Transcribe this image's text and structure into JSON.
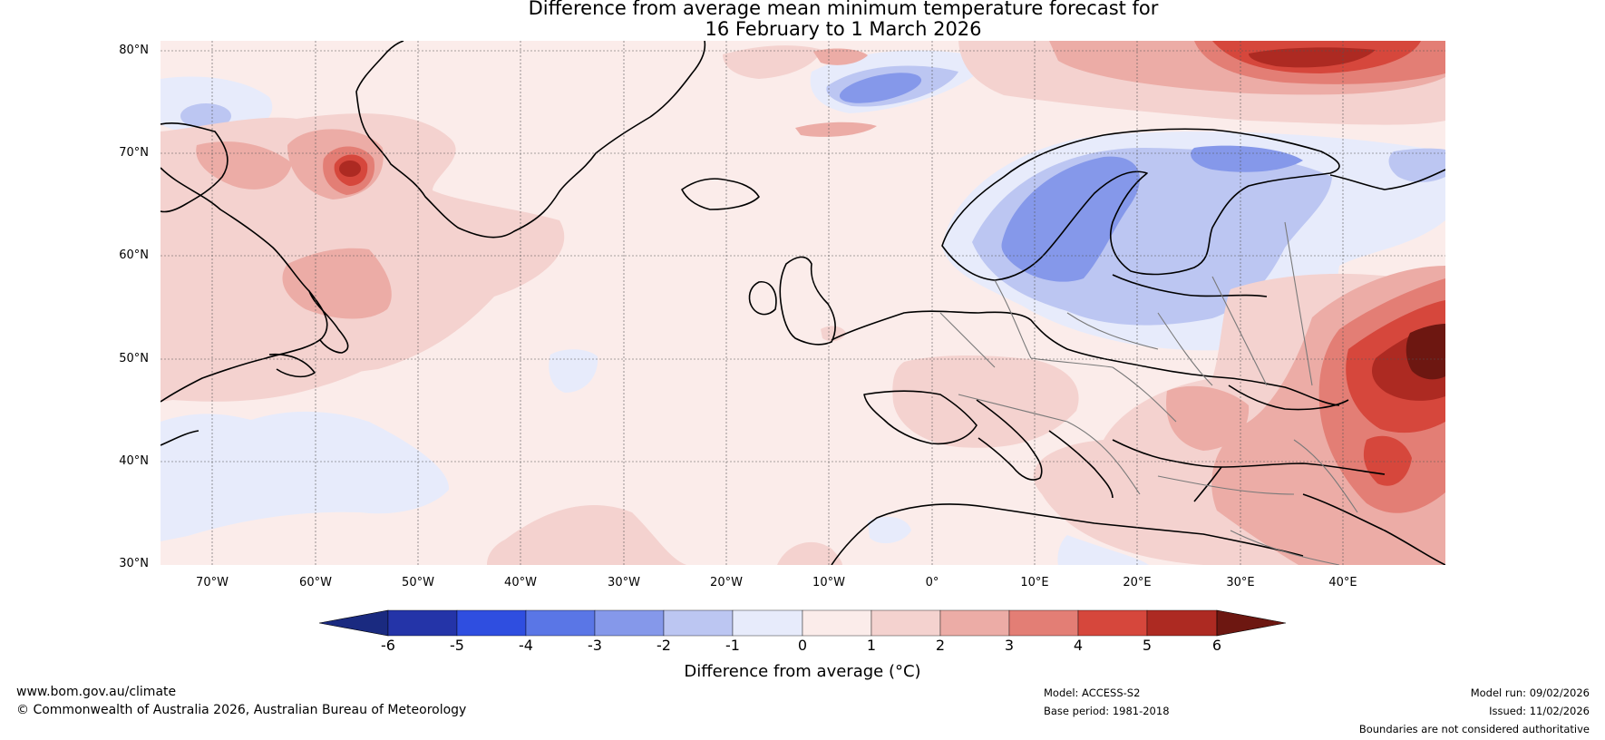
{
  "title": {
    "line1": "Difference from average mean minimum temperature forecast for",
    "line2": "16 February to 1 March 2026"
  },
  "map": {
    "lat_labels": [
      "80°N",
      "70°N",
      "60°N",
      "50°N",
      "40°N",
      "30°N"
    ],
    "lon_labels": [
      "70°W",
      "60°W",
      "50°W",
      "40°W",
      "30°W",
      "20°W",
      "10°W",
      "0°",
      "10°E",
      "20°E",
      "30°E",
      "40°E"
    ]
  },
  "colorbar": {
    "ticks": [
      "-6",
      "-5",
      "-4",
      "-3",
      "-2",
      "-1",
      "0",
      "1",
      "2",
      "3",
      "4",
      "5",
      "6"
    ],
    "label": "Difference from average (°C)",
    "colors": {
      "below_min": "#1a2a80",
      "bins": [
        "#2434a8",
        "#2f4ee0",
        "#5a76e6",
        "#8598ea",
        "#bcc6f2",
        "#e7ebfb",
        "#fbecea",
        "#f4d2cf",
        "#ecaca6",
        "#e37e75",
        "#d6473c",
        "#ad2a22"
      ],
      "above_max": "#6d1711"
    }
  },
  "footer": {
    "website": "www.bom.gov.au/climate",
    "copyright": "© Commonwealth of Australia 2026, Australian Bureau of Meteorology",
    "model": "Model: ACCESS-S2",
    "base_period": "Base period: 1981-2018",
    "model_run": "Model run: 09/02/2026",
    "issued": "Issued: 11/02/2026",
    "disclaimer": "Boundaries are not considered authoritative"
  }
}
